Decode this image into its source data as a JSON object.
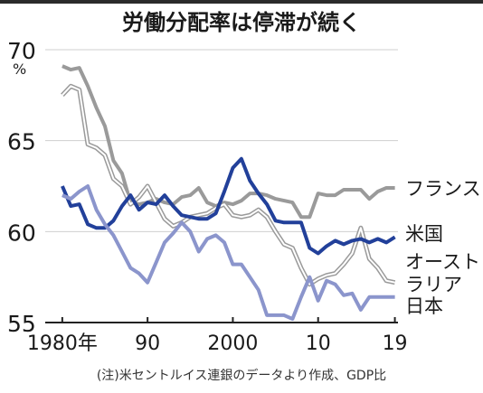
{
  "chart_data": {
    "type": "line",
    "title": "労働分配率は停滞が続く",
    "y_unit": "%",
    "ylim": [
      55,
      70
    ],
    "y_ticks": [
      55,
      60,
      65,
      70
    ],
    "xlim": [
      1978,
      2020
    ],
    "x_ticks": [
      {
        "value": 1980,
        "label": "1980年"
      },
      {
        "value": 1990,
        "label": "90"
      },
      {
        "value": 2000,
        "label": "2000"
      },
      {
        "value": 2010,
        "label": "10"
      },
      {
        "value": 2019,
        "label": "19"
      }
    ],
    "note": "(注)米セントルイス連銀のデータより作成、GDP比",
    "series": [
      {
        "name": "フランス",
        "color": "#9a9a9a",
        "width": 4,
        "x": [
          1980,
          1981,
          1982,
          1983,
          1984,
          1985,
          1986,
          1987,
          1988,
          1989,
          1990,
          1991,
          1992,
          1993,
          1994,
          1995,
          1996,
          1997,
          1998,
          1999,
          2000,
          2001,
          2002,
          2003,
          2004,
          2005,
          2006,
          2007,
          2008,
          2009,
          2010,
          2011,
          2012,
          2013,
          2014,
          2015,
          2016,
          2017,
          2018,
          2019
        ],
        "values": [
          69.1,
          68.9,
          69.0,
          68.0,
          66.8,
          65.8,
          63.9,
          63.2,
          61.6,
          61.5,
          61.6,
          61.8,
          61.6,
          61.5,
          61.9,
          62.0,
          62.4,
          61.6,
          61.4,
          61.6,
          61.5,
          61.7,
          62.1,
          62.1,
          62.0,
          61.8,
          61.7,
          61.6,
          60.8,
          60.8,
          62.1,
          62.0,
          62.0,
          62.3,
          62.3,
          62.3,
          61.8,
          62.2,
          62.4,
          62.4
        ]
      },
      {
        "name": "オーストラリア",
        "color": "#9a9a9a",
        "width": 2,
        "dual": true,
        "x": [
          1980,
          1981,
          1982,
          1983,
          1984,
          1985,
          1986,
          1987,
          1988,
          1989,
          1990,
          1991,
          1992,
          1993,
          1994,
          1995,
          1996,
          1997,
          1998,
          1999,
          2000,
          2001,
          2002,
          2003,
          2004,
          2005,
          2006,
          2007,
          2008,
          2009,
          2010,
          2011,
          2012,
          2013,
          2014,
          2015,
          2016,
          2017,
          2018,
          2019
        ],
        "values": [
          67.5,
          68.0,
          67.8,
          64.8,
          64.6,
          64.2,
          62.9,
          62.5,
          61.5,
          61.9,
          62.5,
          61.6,
          60.7,
          60.3,
          60.5,
          60.8,
          60.9,
          61.0,
          61.3,
          61.5,
          60.9,
          60.8,
          60.9,
          61.2,
          60.8,
          60.0,
          59.3,
          59.1,
          58.0,
          57.1,
          57.4,
          57.6,
          57.7,
          58.2,
          58.8,
          60.2,
          58.5,
          58.0,
          57.3,
          57.2
        ]
      },
      {
        "name": "米国",
        "color": "#22409a",
        "width": 4,
        "x": [
          1980,
          1981,
          1982,
          1983,
          1984,
          1985,
          1986,
          1987,
          1988,
          1989,
          1990,
          1991,
          1992,
          1993,
          1994,
          1995,
          1996,
          1997,
          1998,
          1999,
          2000,
          2001,
          2002,
          2003,
          2004,
          2005,
          2006,
          2007,
          2008,
          2009,
          2010,
          2011,
          2012,
          2013,
          2014,
          2015,
          2016,
          2017,
          2018,
          2019
        ],
        "values": [
          62.5,
          61.4,
          61.5,
          60.4,
          60.2,
          60.2,
          60.6,
          61.4,
          62.0,
          61.2,
          61.6,
          61.5,
          62.0,
          61.4,
          60.9,
          60.8,
          60.7,
          60.7,
          61.0,
          62.2,
          63.5,
          64.0,
          62.8,
          62.1,
          61.5,
          60.6,
          60.5,
          60.5,
          60.5,
          59.1,
          58.8,
          59.2,
          59.5,
          59.3,
          59.5,
          59.6,
          59.4,
          59.6,
          59.4,
          59.7
        ]
      },
      {
        "name": "日本",
        "color": "#8b95cc",
        "width": 4,
        "x": [
          1980,
          1981,
          1982,
          1983,
          1984,
          1985,
          1986,
          1987,
          1988,
          1989,
          1990,
          1991,
          1992,
          1993,
          1994,
          1995,
          1996,
          1997,
          1998,
          1999,
          2000,
          2001,
          2002,
          2003,
          2004,
          2005,
          2006,
          2007,
          2008,
          2009,
          2010,
          2011,
          2012,
          2013,
          2014,
          2015,
          2016,
          2017,
          2018,
          2019
        ],
        "values": [
          62.0,
          61.8,
          62.2,
          62.5,
          61.2,
          60.4,
          59.8,
          58.9,
          58.0,
          57.7,
          57.2,
          58.3,
          59.4,
          59.9,
          60.5,
          60.0,
          58.9,
          59.6,
          59.8,
          59.4,
          58.2,
          58.2,
          57.5,
          56.8,
          55.4,
          55.4,
          55.4,
          55.2,
          56.4,
          57.5,
          56.2,
          57.3,
          57.1,
          56.5,
          56.6,
          55.7,
          56.4,
          56.4,
          56.4,
          56.4
        ]
      }
    ],
    "labels": [
      {
        "text": "フランス",
        "series": 0
      },
      {
        "text": "米国",
        "series": 2
      },
      {
        "text": "オースト",
        "series": 1
      },
      {
        "text": "ラリア",
        "series": 1
      },
      {
        "text": "日本",
        "series": 3
      }
    ]
  }
}
